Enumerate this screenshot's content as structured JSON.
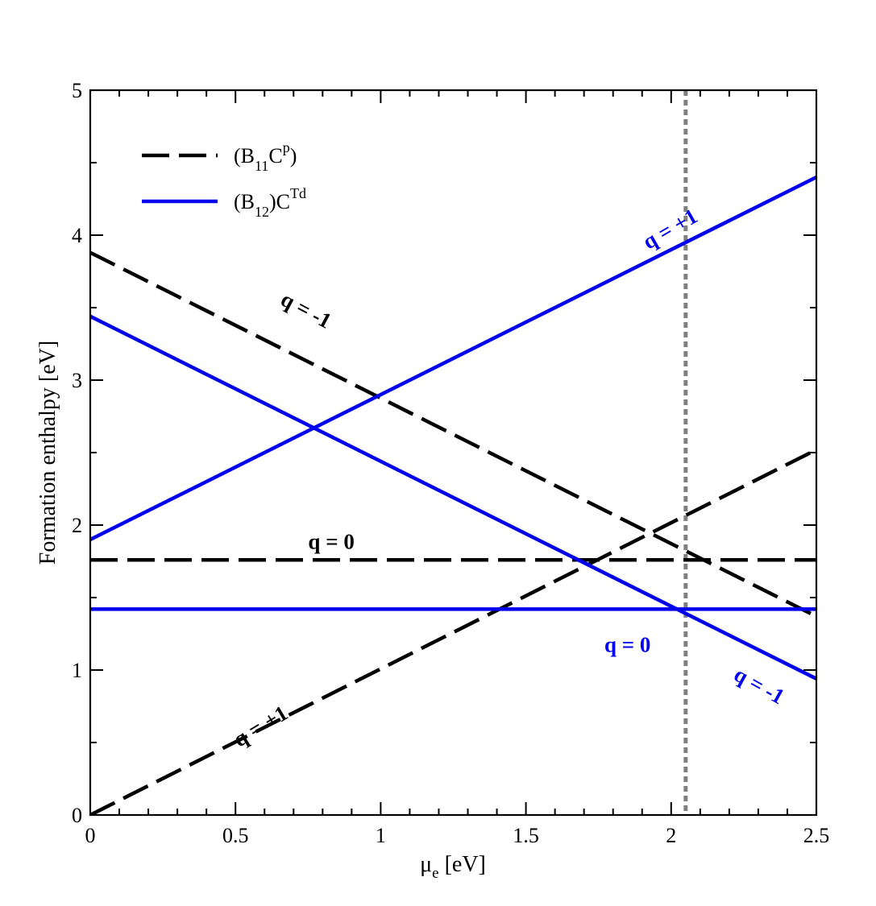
{
  "chart_data": {
    "type": "line",
    "xlabel": {
      "main": "μ",
      "sub": "e",
      "unit": " [eV]"
    },
    "ylabel": "Formation enthalpy [eV]",
    "xlim": [
      0,
      2.5
    ],
    "ylim": [
      0,
      5
    ],
    "x_ticks": [
      "0",
      "0.5",
      "1",
      "1.5",
      "2",
      "2.5"
    ],
    "y_ticks": [
      "0",
      "1",
      "2",
      "3",
      "4",
      "5"
    ],
    "grid": false,
    "legend": {
      "placement": "top-left",
      "entries": [
        {
          "series_group": "B11Cp",
          "parts": [
            "(B",
            "11",
            "C",
            "p",
            ")"
          ]
        },
        {
          "series_group": "B12CTd",
          "parts": [
            "(B",
            "12",
            ")C",
            "Td",
            ""
          ]
        }
      ]
    },
    "colors": {
      "black": "#000000",
      "blue": "#0000ee",
      "marker": "#808080"
    },
    "vertical_line": {
      "x": 2.05,
      "style": "dotted",
      "color": "#808080"
    },
    "series": [
      {
        "group": "B11Cp",
        "charge": "-1",
        "style": "dashed",
        "color": "#000000",
        "x": [
          0,
          2.5
        ],
        "y": [
          3.88,
          1.37
        ]
      },
      {
        "group": "B11Cp",
        "charge": "0",
        "style": "dashed",
        "color": "#000000",
        "x": [
          0,
          2.5
        ],
        "y": [
          1.76,
          1.76
        ]
      },
      {
        "group": "B11Cp",
        "charge": "+1",
        "style": "dashed",
        "color": "#000000",
        "x": [
          0,
          2.5
        ],
        "y": [
          0.0,
          2.52
        ]
      },
      {
        "group": "B12CTd",
        "charge": "+1",
        "style": "solid",
        "color": "#0000ee",
        "x": [
          0,
          2.5
        ],
        "y": [
          1.9,
          4.4
        ]
      },
      {
        "group": "B12CTd",
        "charge": "0",
        "style": "solid",
        "color": "#0000ee",
        "x": [
          0,
          2.5
        ],
        "y": [
          1.42,
          1.42
        ]
      },
      {
        "group": "B12CTd",
        "charge": "-1",
        "style": "solid",
        "color": "#0000ee",
        "x": [
          0,
          2.5
        ],
        "y": [
          3.44,
          0.94
        ]
      }
    ],
    "annotations": [
      {
        "text": "q = -1",
        "color": "#000000",
        "x": 0.74,
        "y": 3.47,
        "rotate": 28
      },
      {
        "text": "q = 0",
        "color": "#000000",
        "x": 0.83,
        "y": 1.87,
        "rotate": 0
      },
      {
        "text": "q = +1",
        "color": "#000000",
        "x": 0.59,
        "y": 0.6,
        "rotate": -31
      },
      {
        "text": "q = +1",
        "color": "#0000ee",
        "x": 2.0,
        "y": 4.03,
        "rotate": -30
      },
      {
        "text": "q = 0",
        "color": "#0000ee",
        "x": 1.85,
        "y": 1.16,
        "rotate": 0
      },
      {
        "text": "q = -1",
        "color": "#0000ee",
        "x": 2.3,
        "y": 0.88,
        "rotate": 29
      }
    ]
  }
}
